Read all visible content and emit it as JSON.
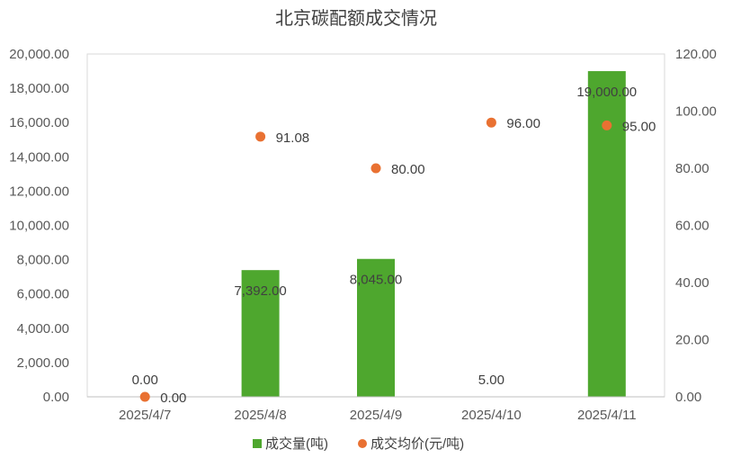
{
  "chart_data": {
    "type": "bar",
    "title": "北京碳配额成交情况",
    "categories": [
      "2025/4/7",
      "2025/4/8",
      "2025/4/9",
      "2025/4/10",
      "2025/4/11"
    ],
    "series": [
      {
        "name": "成交量(吨)",
        "type": "bar",
        "axis": "left",
        "color": "#4ea72e",
        "values": [
          0,
          7392,
          8045,
          5,
          19000
        ],
        "labels": [
          "0.00",
          "7,392.00",
          "8,045.00",
          "5.00",
          "19,000.00"
        ]
      },
      {
        "name": "成交均价(元/吨)",
        "type": "scatter",
        "axis": "right",
        "color": "#e97132",
        "values": [
          0,
          91.08,
          80,
          96,
          95
        ],
        "labels": [
          "0.00",
          "91.08",
          "80.00",
          "96.00",
          "95.00"
        ]
      }
    ],
    "left_axis": {
      "ylim": [
        0,
        20000
      ],
      "ticks": [
        "0.00",
        "2,000.00",
        "4,000.00",
        "6,000.00",
        "8,000.00",
        "10,000.00",
        "12,000.00",
        "14,000.00",
        "16,000.00",
        "18,000.00",
        "20,000.00"
      ]
    },
    "right_axis": {
      "ylim": [
        0,
        120
      ],
      "ticks": [
        "0.00",
        "20.00",
        "40.00",
        "60.00",
        "80.00",
        "100.00",
        "120.00"
      ]
    },
    "grid": false,
    "legend_position": "bottom"
  }
}
